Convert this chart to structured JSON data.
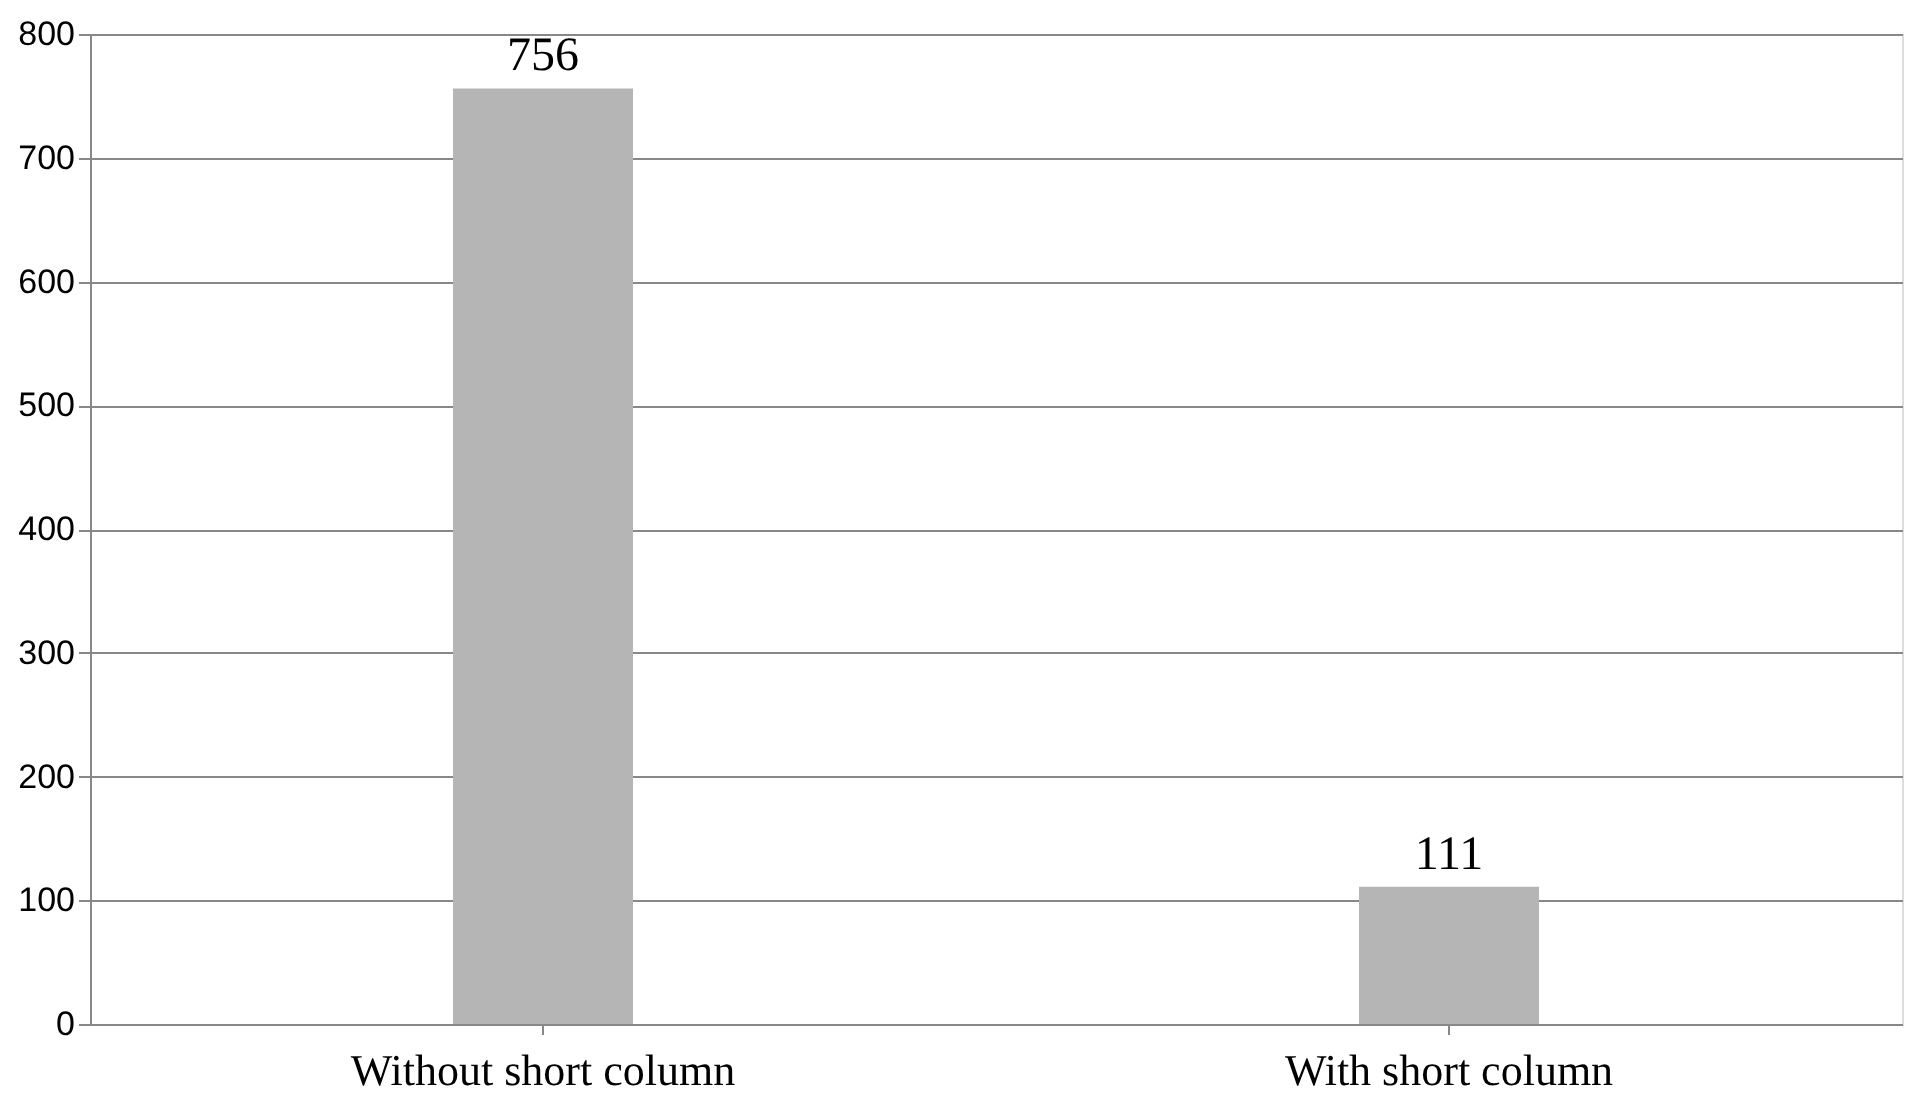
{
  "chart_data": {
    "type": "bar",
    "categories": [
      "Without short column",
      "With short column"
    ],
    "values": [
      756,
      111
    ],
    "color": "#b5b5b5",
    "ylim": [
      0,
      800
    ],
    "yticks": [
      0,
      100,
      200,
      300,
      400,
      500,
      600,
      700,
      800
    ],
    "grid": "y",
    "data_labels": true
  }
}
